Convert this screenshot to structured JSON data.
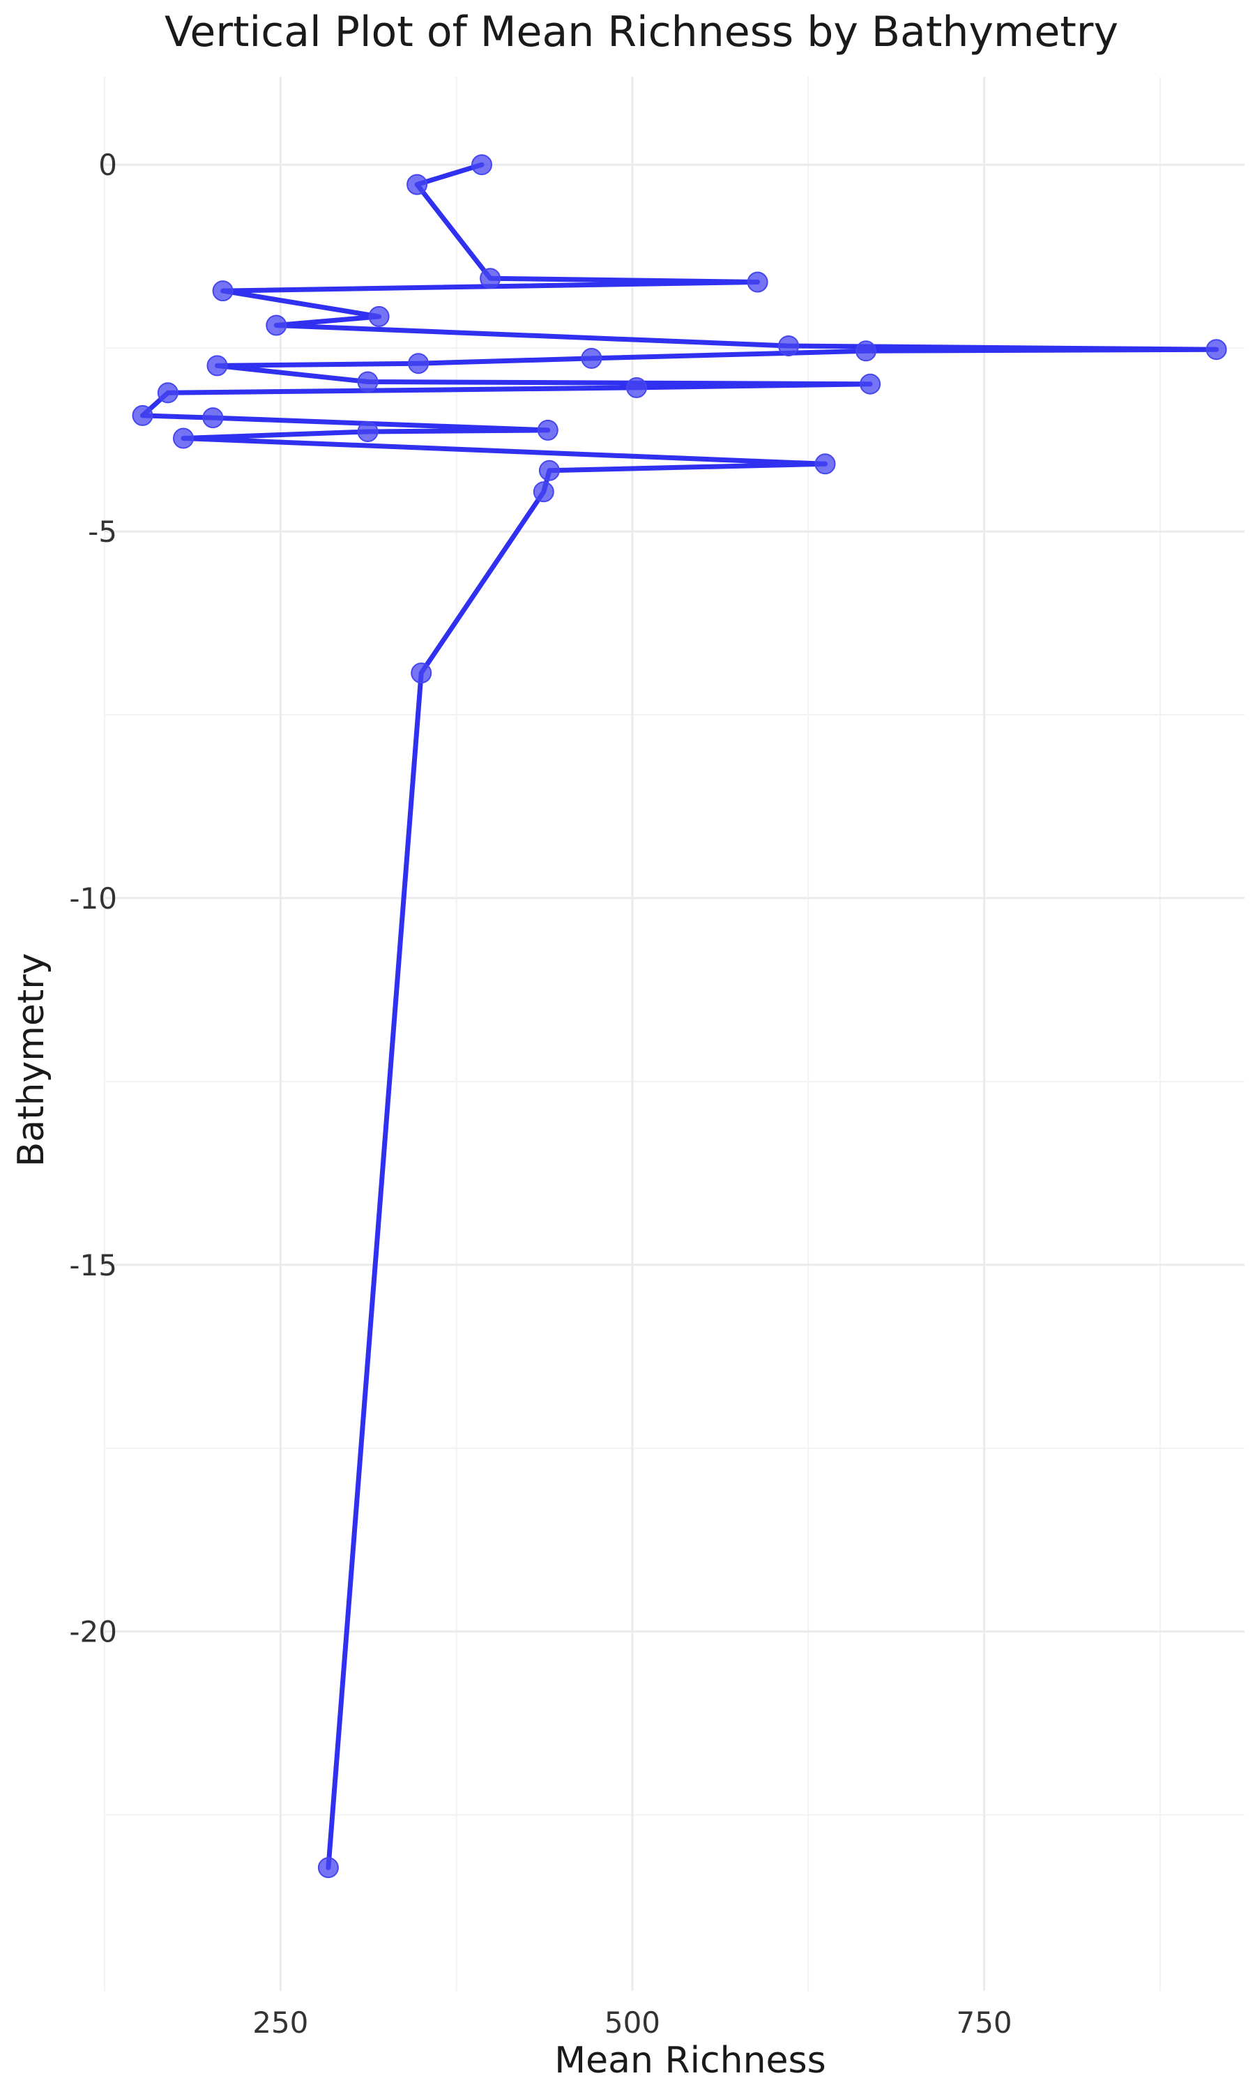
{
  "chart_data": {
    "type": "line",
    "title": "Vertical Plot of Mean Richness by Bathymetry",
    "xlabel": "Mean Richness",
    "ylabel": "Bathymetry",
    "xlim": [
      125,
      935
    ],
    "ylim": [
      -24.9,
      1.2
    ],
    "x_ticks": [
      250,
      500,
      750
    ],
    "x_minor_ticks": [
      125,
      375,
      625,
      875
    ],
    "y_ticks": [
      0,
      -5,
      -10,
      -15,
      -20
    ],
    "y_minor_ticks": [
      -2.5,
      -7.5,
      -12.5,
      -17.5,
      -22.5
    ],
    "x_tick_labels": [
      "250",
      "500",
      "750"
    ],
    "y_tick_labels": [
      "0",
      "-5",
      "-10",
      "-15",
      "-20"
    ],
    "grid": true,
    "line_color": "#1a1aee",
    "point_color": "#4646f0",
    "series": [
      {
        "points": [
          {
            "x": 393,
            "y": 0
          },
          {
            "x": 347,
            "y": -0.27
          },
          {
            "x": 399,
            "y": -1.55
          },
          {
            "x": 589,
            "y": -1.6
          },
          {
            "x": 209,
            "y": -1.72
          },
          {
            "x": 320,
            "y": -2.07
          },
          {
            "x": 247,
            "y": -2.19
          },
          {
            "x": 611,
            "y": -2.47
          },
          {
            "x": 915,
            "y": -2.52
          },
          {
            "x": 666,
            "y": -2.54
          },
          {
            "x": 471,
            "y": -2.64
          },
          {
            "x": 348,
            "y": -2.71
          },
          {
            "x": 205,
            "y": -2.74
          },
          {
            "x": 312,
            "y": -2.96
          },
          {
            "x": 669,
            "y": -2.99
          },
          {
            "x": 503,
            "y": -3.04
          },
          {
            "x": 170,
            "y": -3.11
          },
          {
            "x": 152,
            "y": -3.42
          },
          {
            "x": 202,
            "y": -3.45
          },
          {
            "x": 440,
            "y": -3.62
          },
          {
            "x": 312,
            "y": -3.64
          },
          {
            "x": 181,
            "y": -3.73
          },
          {
            "x": 637,
            "y": -4.08
          },
          {
            "x": 441,
            "y": -4.17
          },
          {
            "x": 437,
            "y": -4.46
          },
          {
            "x": 350,
            "y": -6.93
          },
          {
            "x": 284,
            "y": -23.22
          }
        ]
      }
    ]
  }
}
